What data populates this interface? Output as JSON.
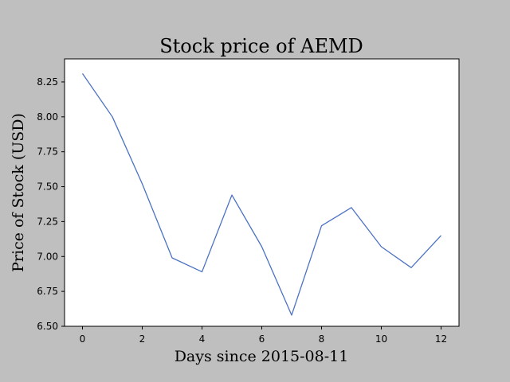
{
  "chart_data": {
    "type": "line",
    "title": "Stock price of AEMD",
    "xlabel": "Days since 2015-08-11",
    "ylabel": "Price of Stock (USD)",
    "x": [
      0,
      1,
      2,
      3,
      4,
      5,
      6,
      7,
      8,
      9,
      10,
      11,
      12
    ],
    "series": [
      {
        "values": [
          8.31,
          8.0,
          7.52,
          6.99,
          6.89,
          7.44,
          7.07,
          6.58,
          7.22,
          7.35,
          7.07,
          6.92,
          7.15
        ],
        "color": "#4c72c4"
      }
    ],
    "xlim": [
      -0.6,
      12.6
    ],
    "ylim": [
      6.5,
      8.415
    ],
    "xticks": [
      0,
      2,
      4,
      6,
      8,
      10,
      12
    ],
    "xtick_labels": [
      "0",
      "2",
      "4",
      "6",
      "8",
      "10",
      "12"
    ],
    "yticks": [
      6.5,
      6.75,
      7.0,
      7.25,
      7.5,
      7.75,
      8.0,
      8.25
    ],
    "ytick_labels": [
      "6.50",
      "6.75",
      "7.00",
      "7.25",
      "7.50",
      "7.75",
      "8.00",
      "8.25"
    ],
    "grid": false,
    "background": "#ffffff",
    "figure_background": "#bfbfbf"
  }
}
